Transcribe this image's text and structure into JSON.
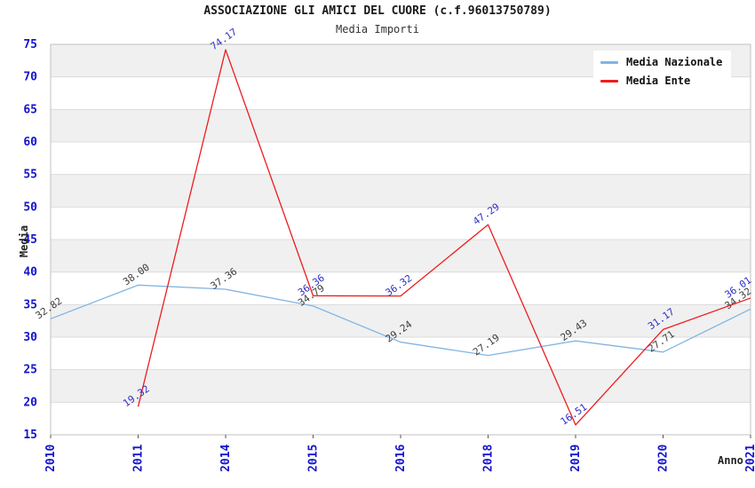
{
  "header": {
    "title": "ASSOCIAZIONE GLI AMICI DEL CUORE (c.f.96013750789)",
    "subtitle": "Media Importi"
  },
  "legend": {
    "items": [
      {
        "label": "Media Nazionale",
        "color": "#82b4e2"
      },
      {
        "label": "Media Ente",
        "color": "#ee1c1c"
      }
    ]
  },
  "axes": {
    "y_title": "Media",
    "x_title": "Anno",
    "y_ticks": [
      15,
      20,
      25,
      30,
      35,
      40,
      45,
      50,
      55,
      60,
      65,
      70,
      75
    ],
    "x_ticks": [
      "2010",
      "2011",
      "2014",
      "2015",
      "2016",
      "2018",
      "2019",
      "2020",
      "2021"
    ]
  },
  "chart_data": {
    "type": "line",
    "title": "ASSOCIAZIONE GLI AMICI DEL CUORE (c.f.96013750789)",
    "subtitle": "Media Importi",
    "xlabel": "Anno",
    "ylabel": "Media",
    "categories": [
      "2010",
      "2011",
      "2014",
      "2015",
      "2016",
      "2018",
      "2019",
      "2020",
      "2021"
    ],
    "series": [
      {
        "name": "Media Nazionale",
        "color": "#82b4e2",
        "label_color": "#3c3c3c",
        "values": [
          32.82,
          38.0,
          37.36,
          34.79,
          29.24,
          27.19,
          29.43,
          27.71,
          34.32
        ]
      },
      {
        "name": "Media Ente",
        "color": "#ee1c1c",
        "label_color": "#2e2ec4",
        "values": [
          null,
          19.32,
          74.17,
          36.36,
          36.32,
          47.29,
          16.51,
          31.17,
          36.01
        ]
      }
    ],
    "ylim": [
      15,
      75
    ],
    "ytick_step": 5,
    "grid": true,
    "band_fill": "#f0f0f0",
    "grid_color": "#dcdcdc",
    "border_color": "#c0c0c0",
    "tick_label_color": "#1414cc",
    "axis_title_color": "#222222",
    "legend_position": "top-right"
  }
}
